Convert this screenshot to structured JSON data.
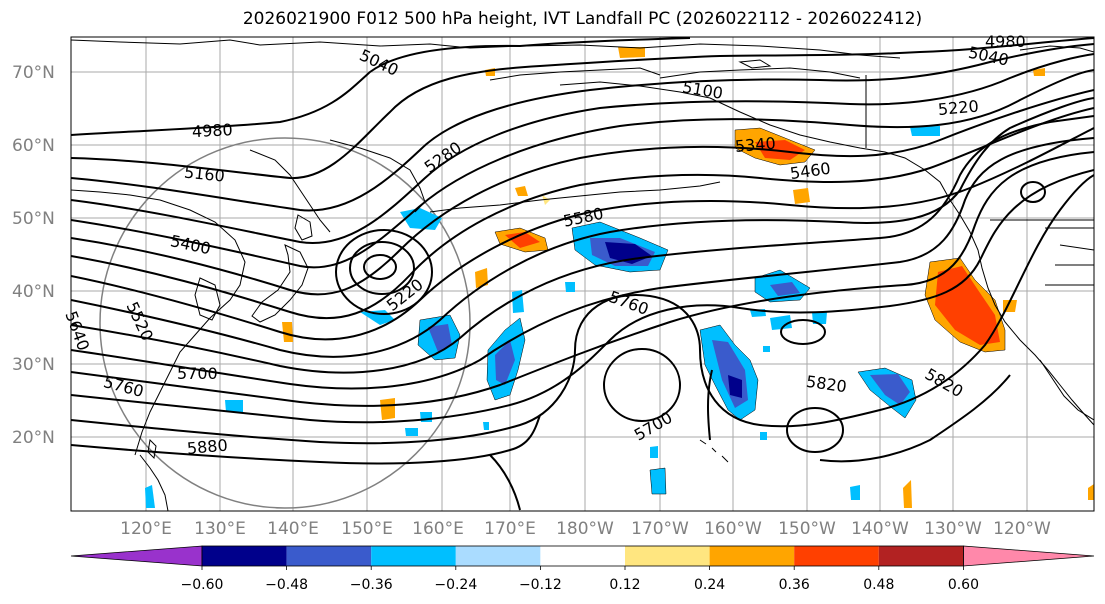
{
  "title": "2026021900 F012 500 hPa height, IVT Landfall PC (2026022112 - 2026022412)",
  "lat_labels": [
    "70°N",
    "60°N",
    "50°N",
    "40°N",
    "30°N",
    "20°N"
  ],
  "lon_labels": [
    "120°E",
    "130°E",
    "140°E",
    "150°E",
    "160°E",
    "170°E",
    "180°W",
    "170°W",
    "160°W",
    "150°W",
    "140°W",
    "130°W",
    "120°W"
  ],
  "contour_labels": [
    "4980",
    "5040",
    "5100",
    "4980",
    "5040",
    "5220",
    "5160",
    "5280",
    "5340",
    "5460",
    "5580",
    "5400",
    "5220",
    "5520",
    "5640",
    "5760",
    "5700",
    "5760",
    "5700",
    "5880",
    "5820",
    "5820"
  ],
  "colorbar": {
    "ticks": [
      "−0.60",
      "−0.48",
      "−0.36",
      "−0.24",
      "−0.12",
      "0.12",
      "0.24",
      "0.36",
      "0.48",
      "0.60"
    ],
    "colors": [
      "#9932cc",
      "#00008b",
      "#3a5bcc",
      "#00bfff",
      "#aadcff",
      "#ffffff",
      "#ffe680",
      "#ffa500",
      "#ff4000",
      "#b22222",
      "#ff88aa"
    ]
  }
}
